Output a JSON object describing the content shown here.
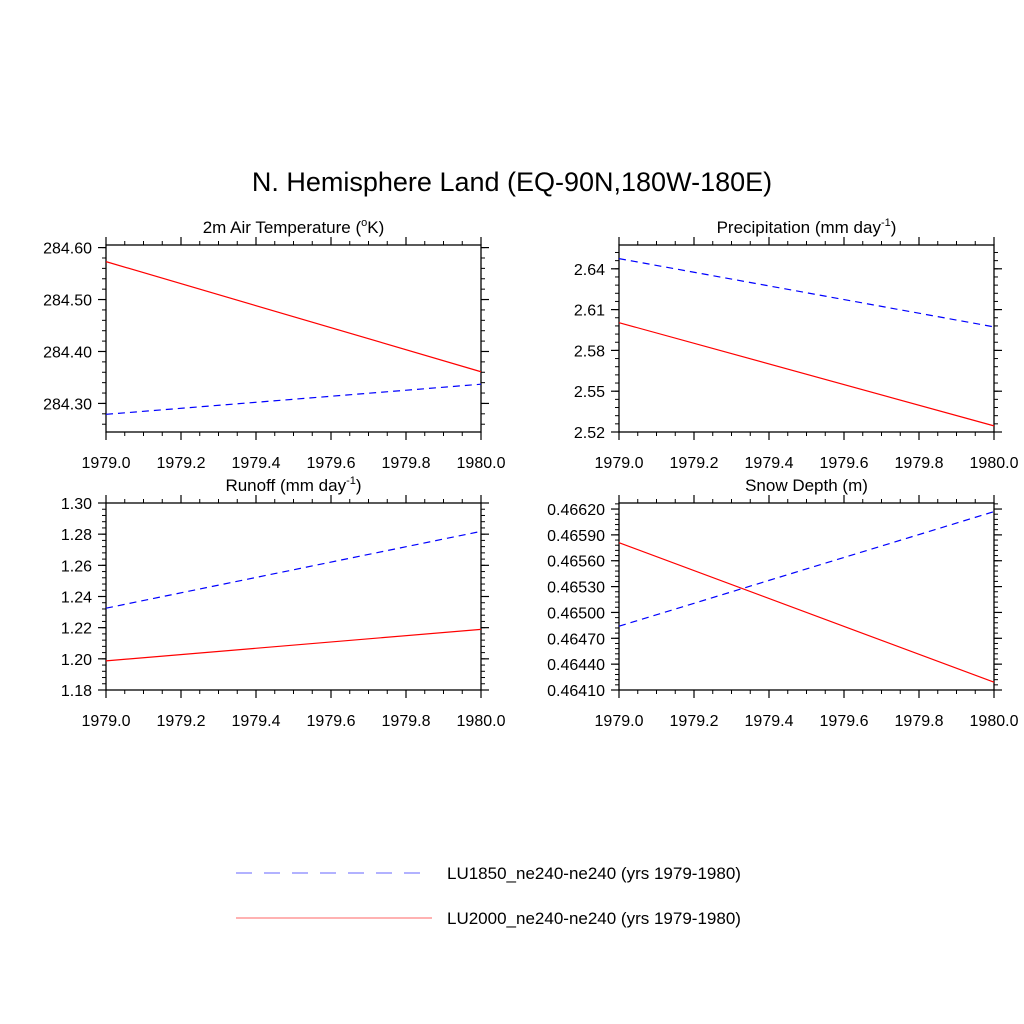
{
  "title": "N. Hemisphere Land (EQ-90N,180W-180E)",
  "colors": {
    "series_1": "#0000ff",
    "series_2": "#ff0000",
    "axis": "#000000"
  },
  "legend": {
    "placement": "bottom-center",
    "entries": [
      {
        "label": "LU1850_ne240-ne240 (yrs 1979-1980)",
        "color": "#0000ff",
        "dash": "dashed"
      },
      {
        "label": "LU2000_ne240-ne240 (yrs 1979-1980)",
        "color": "#ff0000",
        "dash": "solid"
      }
    ]
  },
  "chart_data": [
    {
      "type": "line",
      "title": "2m Air Temperature (",
      "title_sup": "o",
      "title_after": "K)",
      "x": [
        1979.0,
        1980.0
      ],
      "xlim": [
        1979.0,
        1980.0
      ],
      "ylim": [
        284.245,
        284.605
      ],
      "xticks": [
        "1979.0",
        "1979.2",
        "1979.4",
        "1979.6",
        "1979.8",
        "1980.0"
      ],
      "yticks": [
        "284.30",
        "284.40",
        "284.50",
        "284.60"
      ],
      "ytick_values": [
        284.3,
        284.4,
        284.5,
        284.6
      ],
      "series": [
        {
          "values": [
            284.279,
            284.337
          ],
          "color": "#0000ff",
          "dash": "dashed"
        },
        {
          "values": [
            284.573,
            284.361
          ],
          "color": "#ff0000",
          "dash": "solid"
        }
      ]
    },
    {
      "type": "line",
      "title": "Precipitation (mm day",
      "title_sup": "-1",
      "title_after": ")",
      "x": [
        1979.0,
        1980.0
      ],
      "xlim": [
        1979.0,
        1980.0
      ],
      "ylim": [
        2.52,
        2.6575
      ],
      "xticks": [
        "1979.0",
        "1979.2",
        "1979.4",
        "1979.6",
        "1979.8",
        "1980.0"
      ],
      "yticks": [
        "2.52",
        "2.55",
        "2.58",
        "2.61",
        "2.64"
      ],
      "ytick_values": [
        2.52,
        2.55,
        2.58,
        2.61,
        2.64
      ],
      "series": [
        {
          "values": [
            2.6475,
            2.5973
          ],
          "color": "#0000ff",
          "dash": "dashed"
        },
        {
          "values": [
            2.6004,
            2.5245
          ],
          "color": "#ff0000",
          "dash": "solid"
        }
      ]
    },
    {
      "type": "line",
      "title": "Runoff (mm day",
      "title_sup": "-1",
      "title_after": ")",
      "x": [
        1979.0,
        1980.0
      ],
      "xlim": [
        1979.0,
        1980.0
      ],
      "ylim": [
        1.18,
        1.3
      ],
      "xticks": [
        "1979.0",
        "1979.2",
        "1979.4",
        "1979.6",
        "1979.8",
        "1980.0"
      ],
      "yticks": [
        "1.18",
        "1.20",
        "1.22",
        "1.24",
        "1.26",
        "1.28",
        "1.30"
      ],
      "ytick_values": [
        1.18,
        1.2,
        1.22,
        1.24,
        1.26,
        1.28,
        1.3
      ],
      "series": [
        {
          "values": [
            1.2325,
            1.2818
          ],
          "color": "#0000ff",
          "dash": "dashed"
        },
        {
          "values": [
            1.1987,
            1.2189
          ],
          "color": "#ff0000",
          "dash": "solid"
        }
      ]
    },
    {
      "type": "line",
      "title": "Snow Depth (m)",
      "title_sup": "",
      "title_after": "",
      "x": [
        1979.0,
        1980.0
      ],
      "xlim": [
        1979.0,
        1980.0
      ],
      "ylim": [
        0.4641,
        0.46627
      ],
      "xticks": [
        "1979.0",
        "1979.2",
        "1979.4",
        "1979.6",
        "1979.8",
        "1980.0"
      ],
      "yticks": [
        "0.46410",
        "0.46440",
        "0.46470",
        "0.46500",
        "0.46530",
        "0.46560",
        "0.46590",
        "0.46620"
      ],
      "ytick_values": [
        0.4641,
        0.4644,
        0.4647,
        0.465,
        0.4653,
        0.4656,
        0.4659,
        0.4662
      ],
      "series": [
        {
          "values": [
            0.46484,
            0.46617
          ],
          "color": "#0000ff",
          "dash": "dashed"
        },
        {
          "values": [
            0.46581,
            0.46419
          ],
          "color": "#ff0000",
          "dash": "solid"
        }
      ]
    }
  ]
}
